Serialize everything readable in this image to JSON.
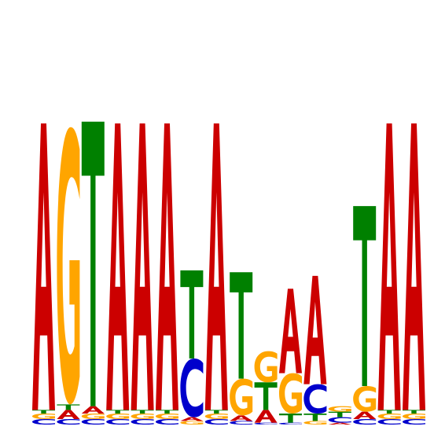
{
  "logo": {
    "colors": {
      "A": "#cc0000",
      "C": "#0000cc",
      "G": "#ffa500",
      "T": "#008000"
    },
    "max_bits": 2.0,
    "positions": [
      {
        "stack": [
          [
            "C",
            0.03
          ],
          [
            "G",
            0.03
          ],
          [
            "T",
            0.02
          ],
          [
            "A",
            1.56
          ]
        ]
      },
      {
        "stack": [
          [
            "C",
            0.03
          ],
          [
            "A",
            0.05
          ],
          [
            "T",
            0.03
          ],
          [
            "G",
            1.51
          ]
        ]
      },
      {
        "stack": [
          [
            "C",
            0.03
          ],
          [
            "G",
            0.03
          ],
          [
            "A",
            0.04
          ],
          [
            "T",
            1.55
          ]
        ]
      },
      {
        "stack": [
          [
            "C",
            0.03
          ],
          [
            "G",
            0.03
          ],
          [
            "T",
            0.02
          ],
          [
            "A",
            1.56
          ]
        ]
      },
      {
        "stack": [
          [
            "C",
            0.03
          ],
          [
            "G",
            0.03
          ],
          [
            "T",
            0.02
          ],
          [
            "A",
            1.56
          ]
        ]
      },
      {
        "stack": [
          [
            "C",
            0.03
          ],
          [
            "G",
            0.03
          ],
          [
            "T",
            0.02
          ],
          [
            "A",
            1.56
          ]
        ]
      },
      {
        "stack": [
          [
            "G",
            0.02
          ],
          [
            "A",
            0.02
          ],
          [
            "C",
            0.32
          ],
          [
            "T",
            0.48
          ]
        ]
      },
      {
        "stack": [
          [
            "C",
            0.03
          ],
          [
            "G",
            0.03
          ],
          [
            "T",
            0.02
          ],
          [
            "A",
            1.56
          ]
        ]
      },
      {
        "stack": [
          [
            "C",
            0.02
          ],
          [
            "A",
            0.03
          ],
          [
            "G",
            0.2
          ],
          [
            "T",
            0.58
          ]
        ]
      },
      {
        "stack": [
          [
            "C",
            0.01
          ],
          [
            "A",
            0.07
          ],
          [
            "T",
            0.15
          ],
          [
            "G",
            0.17
          ]
        ]
      },
      {
        "stack": [
          [
            "C",
            0.01
          ],
          [
            "T",
            0.05
          ],
          [
            "G",
            0.22
          ],
          [
            "A",
            0.46
          ]
        ]
      },
      {
        "stack": [
          [
            "G",
            0.02
          ],
          [
            "T",
            0.04
          ],
          [
            "C",
            0.16
          ],
          [
            "A",
            0.59
          ]
        ]
      },
      {
        "stack": [
          [
            "A",
            0.01
          ],
          [
            "C",
            0.03
          ],
          [
            "T",
            0.03
          ],
          [
            "G",
            0.03
          ]
        ]
      },
      {
        "stack": [
          [
            "C",
            0.03
          ],
          [
            "A",
            0.04
          ],
          [
            "G",
            0.14
          ],
          [
            "T",
            0.98
          ]
        ]
      },
      {
        "stack": [
          [
            "C",
            0.03
          ],
          [
            "G",
            0.03
          ],
          [
            "T",
            0.02
          ],
          [
            "A",
            1.56
          ]
        ]
      },
      {
        "stack": [
          [
            "C",
            0.03
          ],
          [
            "G",
            0.03
          ],
          [
            "T",
            0.02
          ],
          [
            "A",
            1.56
          ]
        ]
      }
    ]
  }
}
